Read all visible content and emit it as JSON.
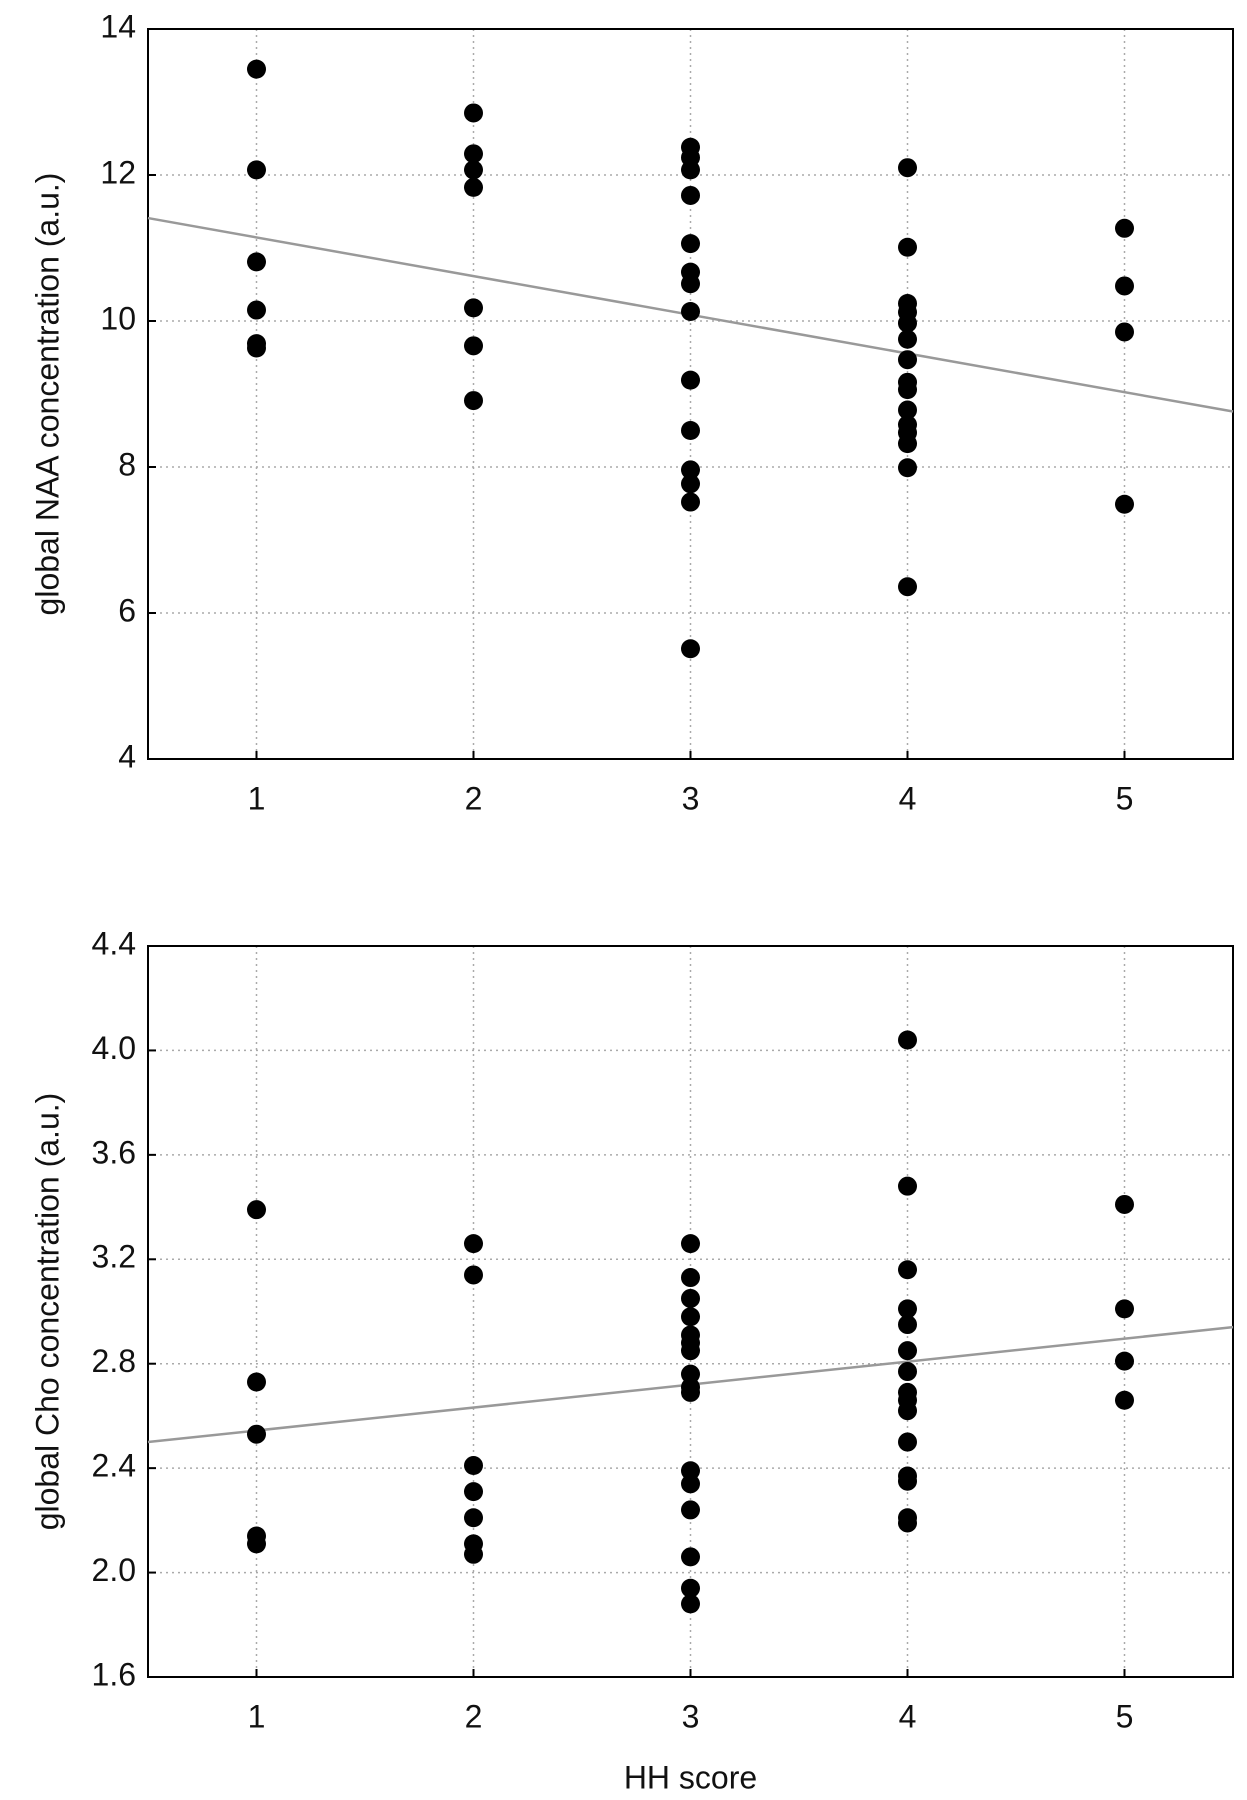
{
  "chart_data": [
    {
      "type": "scatter",
      "ylabel": "global NAA concentration (a.u.)",
      "xlim": [
        0.5,
        5.5
      ],
      "xticks": [
        1,
        2,
        3,
        4,
        5
      ],
      "ylim": [
        4,
        14
      ],
      "yticks": [
        4,
        6,
        8,
        10,
        12,
        14
      ],
      "grid": true,
      "points": {
        "color": "#000000",
        "x": [
          1,
          1,
          1,
          1,
          1,
          1,
          2,
          2,
          2,
          2,
          2,
          2,
          2,
          3,
          3,
          3,
          3,
          3,
          3,
          3,
          3,
          3,
          3,
          3,
          3,
          3,
          3,
          4,
          4,
          4,
          4,
          4,
          4,
          4,
          4,
          4,
          4,
          4,
          4,
          4,
          4,
          4,
          5,
          5,
          5,
          5
        ],
        "y": [
          13.45,
          12.07,
          10.81,
          10.15,
          9.69,
          9.63,
          12.85,
          12.29,
          12.07,
          11.83,
          10.18,
          9.66,
          8.91,
          12.38,
          12.24,
          12.07,
          11.72,
          11.06,
          10.67,
          10.51,
          10.13,
          9.19,
          8.5,
          7.96,
          7.77,
          7.52,
          5.51,
          12.1,
          11.01,
          10.24,
          10.12,
          9.97,
          9.75,
          9.47,
          9.16,
          9.06,
          8.78,
          8.58,
          8.47,
          8.32,
          7.99,
          6.36,
          11.27,
          10.48,
          9.85,
          7.49
        ]
      },
      "fit": {
        "color": "#999999",
        "x": [
          0.5,
          5.5
        ],
        "y": [
          11.41,
          8.76
        ]
      }
    },
    {
      "type": "scatter",
      "ylabel": "global Cho concentration (a.u.)",
      "xlabel": "HH score",
      "xlim": [
        0.5,
        5.5
      ],
      "xticks": [
        1,
        2,
        3,
        4,
        5
      ],
      "ylim": [
        1.6,
        4.4
      ],
      "yticks": [
        1.6,
        {
          "value": 2,
          "label": "2.0"
        },
        2.4,
        2.8,
        3.2,
        3.6,
        {
          "value": 4,
          "label": "4.0"
        },
        4.4
      ],
      "grid": true,
      "points": {
        "color": "#000000",
        "x": [
          1,
          1,
          1,
          1,
          1,
          2,
          2,
          2,
          2,
          2,
          2,
          2,
          3,
          3,
          3,
          3,
          3,
          3,
          3,
          3,
          3,
          3,
          3,
          3,
          3,
          3,
          3,
          3,
          4,
          4,
          4,
          4,
          4,
          4,
          4,
          4,
          4,
          4,
          4,
          4,
          4,
          4,
          4,
          5,
          5,
          5,
          5
        ],
        "y": [
          3.39,
          2.73,
          2.53,
          2.14,
          2.11,
          3.26,
          3.14,
          2.41,
          2.31,
          2.21,
          2.11,
          2.07,
          3.26,
          3.13,
          3.05,
          2.98,
          2.91,
          2.88,
          2.85,
          2.76,
          2.71,
          2.69,
          2.39,
          2.34,
          2.24,
          2.06,
          1.94,
          1.88,
          4.04,
          3.48,
          3.16,
          3.01,
          2.95,
          2.85,
          2.77,
          2.69,
          2.66,
          2.62,
          2.5,
          2.37,
          2.35,
          2.21,
          2.19,
          3.41,
          3.01,
          2.81,
          2.66
        ]
      },
      "fit": {
        "color": "#999999",
        "x": [
          0.5,
          5.5
        ],
        "y": [
          2.5,
          2.94
        ]
      }
    }
  ]
}
